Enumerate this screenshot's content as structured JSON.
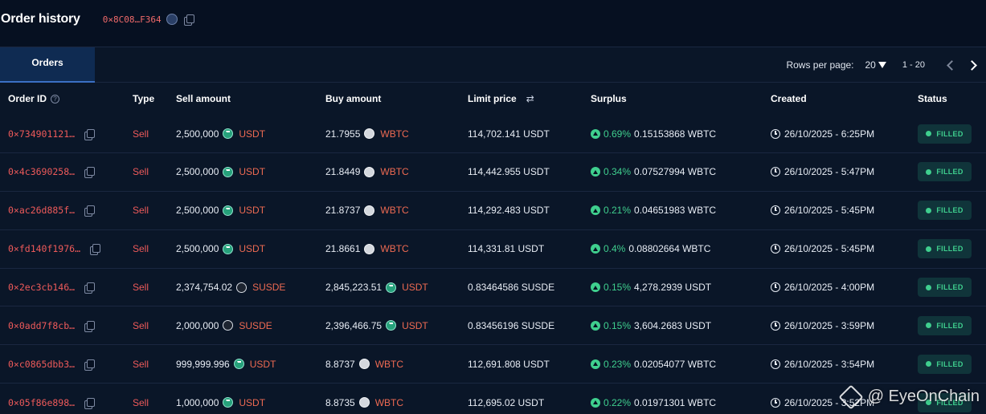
{
  "header": {
    "title": "Order history",
    "address": "0×8C08…F364"
  },
  "tabs": [
    {
      "label": "Orders",
      "active": true
    }
  ],
  "pagination": {
    "rows_per_page_label": "Rows per page:",
    "rows_per_page_value": "20",
    "range": "1 - 20"
  },
  "columns": {
    "order_id": "Order ID",
    "type": "Type",
    "sell_amount": "Sell amount",
    "buy_amount": "Buy amount",
    "limit_price": "Limit price",
    "surplus": "Surplus",
    "created": "Created",
    "status": "Status"
  },
  "help_icon_glyph": "?",
  "swap_icon_glyph": "⇄",
  "orders": [
    {
      "id": "0×734901121…",
      "type": "Sell",
      "sell_amt": "2,500,000",
      "sell_token": "USDT",
      "sell_icon": "usdt",
      "buy_amt": "21.7955",
      "buy_token": "WBTC",
      "buy_icon": "wbtc",
      "limit": "114,702.141 USDT",
      "surplus_pct": "0.69%",
      "surplus_amt": "0.15153868 WBTC",
      "created": "26/10/2025 - 6:25PM",
      "status": "FILLED"
    },
    {
      "id": "0×4c3690258…",
      "type": "Sell",
      "sell_amt": "2,500,000",
      "sell_token": "USDT",
      "sell_icon": "usdt",
      "buy_amt": "21.8449",
      "buy_token": "WBTC",
      "buy_icon": "wbtc",
      "limit": "114,442.955 USDT",
      "surplus_pct": "0.34%",
      "surplus_amt": "0.07527994 WBTC",
      "created": "26/10/2025 - 5:47PM",
      "status": "FILLED"
    },
    {
      "id": "0×ac26d885f…",
      "type": "Sell",
      "sell_amt": "2,500,000",
      "sell_token": "USDT",
      "sell_icon": "usdt",
      "buy_amt": "21.8737",
      "buy_token": "WBTC",
      "buy_icon": "wbtc",
      "limit": "114,292.483 USDT",
      "surplus_pct": "0.21%",
      "surplus_amt": "0.04651983 WBTC",
      "created": "26/10/2025 - 5:45PM",
      "status": "FILLED"
    },
    {
      "id": "0×fd140f1976…",
      "type": "Sell",
      "sell_amt": "2,500,000",
      "sell_token": "USDT",
      "sell_icon": "usdt",
      "buy_amt": "21.8661",
      "buy_token": "WBTC",
      "buy_icon": "wbtc",
      "limit": "114,331.81 USDT",
      "surplus_pct": "0.4%",
      "surplus_amt": "0.08802664 WBTC",
      "created": "26/10/2025 - 5:45PM",
      "status": "FILLED"
    },
    {
      "id": "0×2ec3cb146…",
      "type": "Sell",
      "sell_amt": "2,374,754.02",
      "sell_token": "SUSDE",
      "sell_icon": "susde",
      "buy_amt": "2,845,223.51",
      "buy_token": "USDT",
      "buy_icon": "usdt",
      "limit": "0.83464586 SUSDE",
      "surplus_pct": "0.15%",
      "surplus_amt": "4,278.2939 USDT",
      "created": "26/10/2025 - 4:00PM",
      "status": "FILLED"
    },
    {
      "id": "0×0add7f8cb…",
      "type": "Sell",
      "sell_amt": "2,000,000",
      "sell_token": "SUSDE",
      "sell_icon": "susde",
      "buy_amt": "2,396,466.75",
      "buy_token": "USDT",
      "buy_icon": "usdt",
      "limit": "0.83456196 SUSDE",
      "surplus_pct": "0.15%",
      "surplus_amt": "3,604.2683 USDT",
      "created": "26/10/2025 - 3:59PM",
      "status": "FILLED"
    },
    {
      "id": "0×c0865dbb3…",
      "type": "Sell",
      "sell_amt": "999,999.996",
      "sell_token": "USDT",
      "sell_icon": "usdt",
      "buy_amt": "8.8737",
      "buy_token": "WBTC",
      "buy_icon": "wbtc",
      "limit": "112,691.808 USDT",
      "surplus_pct": "0.23%",
      "surplus_amt": "0.02054077 WBTC",
      "created": "26/10/2025 - 3:54PM",
      "status": "FILLED"
    },
    {
      "id": "0×05f86e898…",
      "type": "Sell",
      "sell_amt": "1,000,000",
      "sell_token": "USDT",
      "sell_icon": "usdt",
      "buy_amt": "8.8735",
      "buy_token": "WBTC",
      "buy_icon": "wbtc",
      "limit": "112,695.02 USDT",
      "surplus_pct": "0.22%",
      "surplus_amt": "0.01971301 WBTC",
      "created": "26/10/2025 - 3:52PM",
      "status": "FILLED"
    }
  ],
  "watermark": "@ EyeOnChain",
  "colors": {
    "background": "#061021",
    "accent_red": "#ee5a5a",
    "accent_green": "#3fcf8e",
    "tab_active": "#0f2b52"
  }
}
